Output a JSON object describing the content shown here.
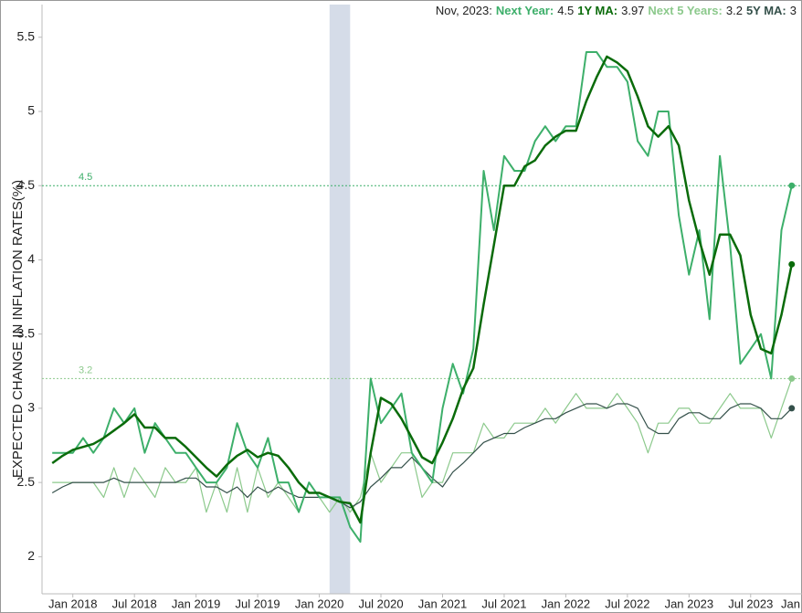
{
  "chart_data": {
    "type": "line",
    "summary": {
      "date": "Nov, 2023:",
      "items": [
        {
          "label": "Next Year:",
          "value": 4.5
        },
        {
          "label": "1Y MA:",
          "value": 3.97
        },
        {
          "label": "Next 5 Years:",
          "value": 3.2
        },
        {
          "label": "5Y MA:",
          "value": 3
        }
      ]
    },
    "y_label": "EXPECTED CHANGE IN INFLATION RATES(%)",
    "x": [
      "2017-11",
      "2017-12",
      "2018-01",
      "2018-02",
      "2018-03",
      "2018-04",
      "2018-05",
      "2018-06",
      "2018-07",
      "2018-08",
      "2018-09",
      "2018-10",
      "2018-11",
      "2018-12",
      "2019-01",
      "2019-02",
      "2019-03",
      "2019-04",
      "2019-05",
      "2019-06",
      "2019-07",
      "2019-08",
      "2019-09",
      "2019-10",
      "2019-11",
      "2019-12",
      "2020-01",
      "2020-02",
      "2020-03",
      "2020-04",
      "2020-05",
      "2020-06",
      "2020-07",
      "2020-08",
      "2020-09",
      "2020-10",
      "2020-11",
      "2020-12",
      "2021-01",
      "2021-02",
      "2021-03",
      "2021-04",
      "2021-05",
      "2021-06",
      "2021-07",
      "2021-08",
      "2021-09",
      "2021-10",
      "2021-11",
      "2021-12",
      "2022-01",
      "2022-02",
      "2022-03",
      "2022-04",
      "2022-05",
      "2022-06",
      "2022-07",
      "2022-08",
      "2022-09",
      "2022-10",
      "2022-11",
      "2022-12",
      "2023-01",
      "2023-02",
      "2023-03",
      "2023-04",
      "2023-05",
      "2023-06",
      "2023-07",
      "2023-08",
      "2023-09",
      "2023-10",
      "2023-11"
    ],
    "series": [
      {
        "name": "Next Year",
        "color": "#3daf6a",
        "width": 2,
        "values": [
          2.7,
          2.7,
          2.7,
          2.8,
          2.7,
          2.8,
          3.0,
          2.9,
          3.0,
          2.7,
          2.9,
          2.8,
          2.7,
          2.7,
          2.6,
          2.5,
          2.5,
          2.6,
          2.9,
          2.7,
          2.6,
          2.8,
          2.5,
          2.5,
          2.3,
          2.5,
          2.4,
          2.4,
          2.4,
          2.2,
          2.1,
          3.2,
          2.9,
          3.0,
          3.1,
          2.7,
          2.6,
          2.5,
          3.0,
          3.3,
          3.1,
          3.4,
          4.6,
          4.2,
          4.7,
          4.6,
          4.6,
          4.8,
          4.9,
          4.8,
          4.9,
          4.9,
          5.4,
          5.4,
          5.3,
          5.3,
          5.2,
          4.8,
          4.7,
          5.0,
          5.0,
          4.3,
          3.9,
          4.2,
          3.6,
          4.7,
          4.1,
          3.3,
          3.4,
          3.5,
          3.2,
          4.2,
          4.5
        ]
      },
      {
        "name": "1Y MA",
        "color": "#0a6b0a",
        "width": 2.5,
        "values": [
          2.63,
          2.68,
          2.72,
          2.74,
          2.76,
          2.8,
          2.85,
          2.9,
          2.96,
          2.87,
          2.87,
          2.8,
          2.8,
          2.74,
          2.67,
          2.6,
          2.54,
          2.62,
          2.68,
          2.72,
          2.67,
          2.7,
          2.68,
          2.6,
          2.5,
          2.43,
          2.43,
          2.4,
          2.37,
          2.36,
          2.23,
          2.7,
          3.07,
          3.03,
          2.93,
          2.8,
          2.67,
          2.63,
          2.77,
          2.93,
          3.13,
          3.27,
          3.7,
          4.1,
          4.5,
          4.5,
          4.63,
          4.67,
          4.77,
          4.83,
          4.87,
          4.87,
          5.07,
          5.23,
          5.37,
          5.33,
          5.27,
          5.1,
          4.9,
          4.83,
          4.9,
          4.77,
          4.4,
          4.13,
          3.9,
          4.17,
          4.17,
          4.03,
          3.63,
          3.4,
          3.37,
          3.63,
          3.97
        ]
      },
      {
        "name": "Next 5 Years",
        "color": "#8cc98c",
        "width": 1.2,
        "values": [
          2.5,
          2.5,
          2.5,
          2.5,
          2.5,
          2.4,
          2.6,
          2.4,
          2.6,
          2.5,
          2.4,
          2.6,
          2.5,
          2.5,
          2.6,
          2.3,
          2.5,
          2.3,
          2.6,
          2.3,
          2.6,
          2.4,
          2.5,
          2.4,
          2.3,
          2.5,
          2.4,
          2.3,
          2.4,
          2.3,
          2.4,
          2.7,
          2.5,
          2.6,
          2.7,
          2.7,
          2.4,
          2.5,
          2.5,
          2.7,
          2.7,
          2.7,
          2.9,
          2.8,
          2.8,
          2.9,
          2.9,
          2.9,
          3.0,
          2.9,
          3.0,
          3.1,
          3.0,
          3.0,
          3.0,
          3.1,
          3.0,
          2.9,
          2.7,
          2.9,
          2.9,
          3.0,
          3.0,
          2.9,
          2.9,
          3.0,
          3.1,
          3.0,
          3.0,
          3.0,
          2.8,
          3.0,
          3.2
        ]
      },
      {
        "name": "5Y MA",
        "color": "#34504a",
        "width": 1.2,
        "values": [
          2.43,
          2.47,
          2.5,
          2.5,
          2.5,
          2.5,
          2.53,
          2.5,
          2.5,
          2.5,
          2.5,
          2.5,
          2.5,
          2.53,
          2.53,
          2.47,
          2.47,
          2.43,
          2.47,
          2.4,
          2.47,
          2.43,
          2.47,
          2.43,
          2.4,
          2.4,
          2.4,
          2.4,
          2.37,
          2.33,
          2.37,
          2.47,
          2.53,
          2.6,
          2.6,
          2.67,
          2.6,
          2.53,
          2.47,
          2.57,
          2.63,
          2.7,
          2.77,
          2.8,
          2.83,
          2.83,
          2.87,
          2.9,
          2.93,
          2.93,
          2.97,
          3.0,
          3.03,
          3.03,
          3.0,
          3.03,
          3.03,
          3.0,
          2.87,
          2.83,
          2.83,
          2.93,
          2.97,
          2.97,
          2.93,
          2.93,
          3.0,
          3.03,
          3.03,
          3.0,
          2.93,
          2.93,
          3.0
        ]
      }
    ],
    "reference_lines": [
      {
        "value": 4.5,
        "color": "#3daf6a"
      },
      {
        "value": 3.2,
        "color": "#8cc98c"
      }
    ],
    "shaded_regions": [
      {
        "start": "2020-02",
        "end": "2020-04",
        "color": "#d5dce8"
      }
    ],
    "xlim": [
      "2017-10",
      "2023-12"
    ],
    "xticks": [
      {
        "value": "2018-01",
        "label": "Jan 2018"
      },
      {
        "value": "2018-07",
        "label": "Jul 2018"
      },
      {
        "value": "2019-01",
        "label": "Jan 2019"
      },
      {
        "value": "2019-07",
        "label": "Jul 2019"
      },
      {
        "value": "2020-01",
        "label": "Jan 2020"
      },
      {
        "value": "2020-07",
        "label": "Jul 2020"
      },
      {
        "value": "2021-01",
        "label": "Jan 2021"
      },
      {
        "value": "2021-07",
        "label": "Jul 2021"
      },
      {
        "value": "2022-01",
        "label": "Jan 2022"
      },
      {
        "value": "2022-07",
        "label": "Jul 2022"
      },
      {
        "value": "2023-01",
        "label": "Jan 2023"
      },
      {
        "value": "2023-07",
        "label": "Jul 2023"
      },
      {
        "value": "2024-01",
        "label": "Jan"
      }
    ],
    "ylim": [
      1.75,
      5.72
    ],
    "yticks": [
      2,
      2.5,
      3,
      3.5,
      4,
      4.5,
      5,
      5.5
    ],
    "grid": false
  }
}
